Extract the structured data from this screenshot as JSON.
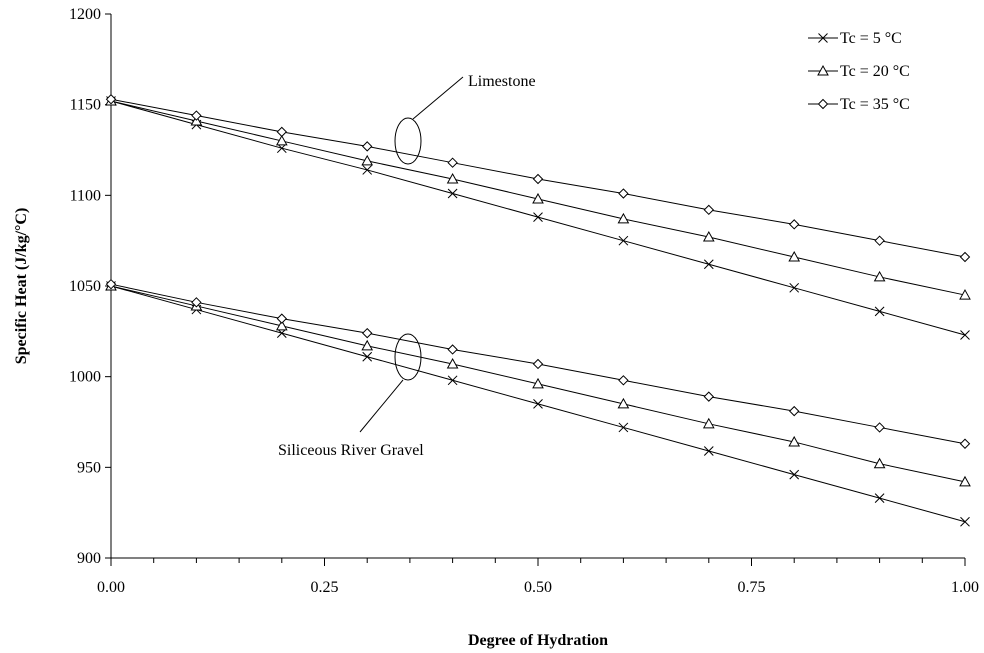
{
  "chart_data": {
    "type": "line",
    "xlabel": "Degree of Hydration",
    "ylabel": "Specific Heat (J/kg/°C)",
    "xlim": [
      0,
      1
    ],
    "ylim": [
      900,
      1200
    ],
    "x_ticks": [
      "0.00",
      "0.25",
      "0.50",
      "0.75",
      "1.00"
    ],
    "y_ticks": [
      "900",
      "950",
      "1000",
      "1050",
      "1100",
      "1150",
      "1200"
    ],
    "grid": false,
    "legend_position": "top-right",
    "x": [
      0,
      0.1,
      0.2,
      0.3,
      0.4,
      0.5,
      0.6,
      0.7,
      0.8,
      0.9,
      1.0
    ],
    "series": [
      {
        "name": "Tc = 5 °C",
        "marker": "x",
        "group": "Limestone",
        "values": [
          1152,
          1139,
          1126,
          1114,
          1101,
          1088,
          1075,
          1062,
          1049,
          1036,
          1023
        ]
      },
      {
        "name": "Tc = 20 °C",
        "marker": "triangle",
        "group": "Limestone",
        "values": [
          1152,
          1141,
          1130,
          1119,
          1109,
          1098,
          1087,
          1077,
          1066,
          1055,
          1045
        ]
      },
      {
        "name": "Tc = 35 °C",
        "marker": "diamond",
        "group": "Limestone",
        "values": [
          1153,
          1144,
          1135,
          1127,
          1118,
          1109,
          1101,
          1092,
          1084,
          1075,
          1066
        ]
      },
      {
        "name": "Tc = 5 °C",
        "marker": "x",
        "group": "Siliceous River Gravel",
        "values": [
          1050,
          1037,
          1024,
          1011,
          998,
          985,
          972,
          959,
          946,
          933,
          920
        ]
      },
      {
        "name": "Tc = 20 °C",
        "marker": "triangle",
        "group": "Siliceous River Gravel",
        "values": [
          1050,
          1039,
          1028,
          1017,
          1007,
          996,
          985,
          974,
          964,
          952,
          942
        ]
      },
      {
        "name": "Tc = 35 °C",
        "marker": "diamond",
        "group": "Siliceous River Gravel",
        "values": [
          1051,
          1041,
          1032,
          1024,
          1015,
          1007,
          998,
          989,
          981,
          972,
          963
        ]
      }
    ],
    "legend": [
      "Tc = 5 °C",
      "Tc = 20 °C",
      "Tc = 35 °C"
    ],
    "annotations": [
      "Limestone",
      "Siliceous River Gravel"
    ]
  }
}
